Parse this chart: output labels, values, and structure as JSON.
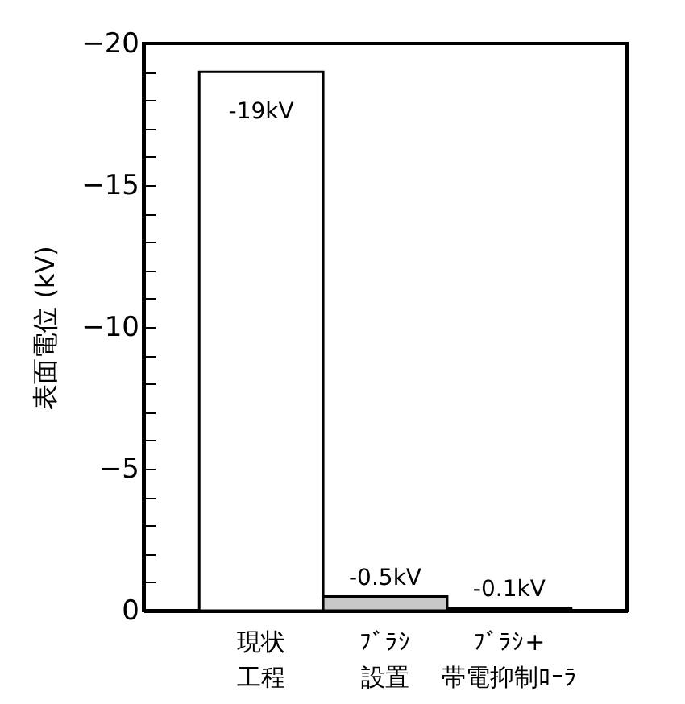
{
  "chart_data": {
    "type": "bar",
    "ylabel": "表面電位 (kV)",
    "categories": [
      "現状工程",
      "ﾌﾞﾗｼ設置",
      "ﾌﾞﾗｼ+帯電抑制ﾛｰﾗ"
    ],
    "values": [
      -19,
      -0.5,
      -0.1
    ],
    "colors": [
      "#ffffff",
      "#c8c8c8",
      "#000000"
    ],
    "value_labels": [
      "-19kV",
      "-0.5kV",
      "-0.1kV"
    ],
    "ylim": [
      0,
      -20
    ],
    "yticks": [
      0,
      {
        "value": -1,
        "label": null
      },
      {
        "value": -2,
        "label": null
      },
      {
        "value": -3,
        "label": null
      },
      {
        "value": -4,
        "label": null
      },
      -5,
      {
        "value": -6,
        "label": null
      },
      {
        "value": -7,
        "label": null
      },
      {
        "value": -8,
        "label": null
      },
      {
        "value": -9,
        "label": null
      },
      -10,
      {
        "value": -11,
        "label": null
      },
      {
        "value": -12,
        "label": null
      },
      {
        "value": -13,
        "label": null
      },
      {
        "value": -14,
        "label": null
      },
      -15,
      {
        "value": -16,
        "label": null
      },
      {
        "value": -17,
        "label": null
      },
      {
        "value": -18,
        "label": null
      },
      {
        "value": -19,
        "label": null
      },
      -20
    ],
    "grid": false
  }
}
